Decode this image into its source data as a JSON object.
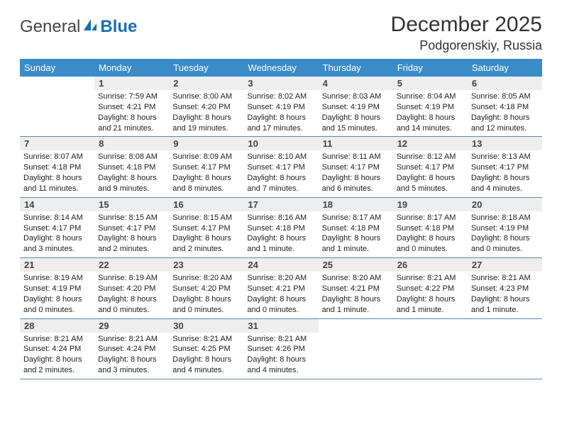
{
  "brand": {
    "part1": "General",
    "part2": "Blue"
  },
  "title": {
    "month_year": "December 2025",
    "location": "Podgorenskiy, Russia"
  },
  "colors": {
    "header_bg": "#3b8bc9",
    "header_text": "#ffffff",
    "daynum_bg": "#eeeeee",
    "week_border": "#5b89b0",
    "logo_accent": "#1b6fb3"
  },
  "weekdays": [
    "Sunday",
    "Monday",
    "Tuesday",
    "Wednesday",
    "Thursday",
    "Friday",
    "Saturday"
  ],
  "weeks": [
    [
      {
        "num": "",
        "lines": []
      },
      {
        "num": "1",
        "lines": [
          "Sunrise: 7:59 AM",
          "Sunset: 4:21 PM",
          "Daylight: 8 hours",
          "and 21 minutes."
        ]
      },
      {
        "num": "2",
        "lines": [
          "Sunrise: 8:00 AM",
          "Sunset: 4:20 PM",
          "Daylight: 8 hours",
          "and 19 minutes."
        ]
      },
      {
        "num": "3",
        "lines": [
          "Sunrise: 8:02 AM",
          "Sunset: 4:19 PM",
          "Daylight: 8 hours",
          "and 17 minutes."
        ]
      },
      {
        "num": "4",
        "lines": [
          "Sunrise: 8:03 AM",
          "Sunset: 4:19 PM",
          "Daylight: 8 hours",
          "and 15 minutes."
        ]
      },
      {
        "num": "5",
        "lines": [
          "Sunrise: 8:04 AM",
          "Sunset: 4:19 PM",
          "Daylight: 8 hours",
          "and 14 minutes."
        ]
      },
      {
        "num": "6",
        "lines": [
          "Sunrise: 8:05 AM",
          "Sunset: 4:18 PM",
          "Daylight: 8 hours",
          "and 12 minutes."
        ]
      }
    ],
    [
      {
        "num": "7",
        "lines": [
          "Sunrise: 8:07 AM",
          "Sunset: 4:18 PM",
          "Daylight: 8 hours",
          "and 11 minutes."
        ]
      },
      {
        "num": "8",
        "lines": [
          "Sunrise: 8:08 AM",
          "Sunset: 4:18 PM",
          "Daylight: 8 hours",
          "and 9 minutes."
        ]
      },
      {
        "num": "9",
        "lines": [
          "Sunrise: 8:09 AM",
          "Sunset: 4:17 PM",
          "Daylight: 8 hours",
          "and 8 minutes."
        ]
      },
      {
        "num": "10",
        "lines": [
          "Sunrise: 8:10 AM",
          "Sunset: 4:17 PM",
          "Daylight: 8 hours",
          "and 7 minutes."
        ]
      },
      {
        "num": "11",
        "lines": [
          "Sunrise: 8:11 AM",
          "Sunset: 4:17 PM",
          "Daylight: 8 hours",
          "and 6 minutes."
        ]
      },
      {
        "num": "12",
        "lines": [
          "Sunrise: 8:12 AM",
          "Sunset: 4:17 PM",
          "Daylight: 8 hours",
          "and 5 minutes."
        ]
      },
      {
        "num": "13",
        "lines": [
          "Sunrise: 8:13 AM",
          "Sunset: 4:17 PM",
          "Daylight: 8 hours",
          "and 4 minutes."
        ]
      }
    ],
    [
      {
        "num": "14",
        "lines": [
          "Sunrise: 8:14 AM",
          "Sunset: 4:17 PM",
          "Daylight: 8 hours",
          "and 3 minutes."
        ]
      },
      {
        "num": "15",
        "lines": [
          "Sunrise: 8:15 AM",
          "Sunset: 4:17 PM",
          "Daylight: 8 hours",
          "and 2 minutes."
        ]
      },
      {
        "num": "16",
        "lines": [
          "Sunrise: 8:15 AM",
          "Sunset: 4:17 PM",
          "Daylight: 8 hours",
          "and 2 minutes."
        ]
      },
      {
        "num": "17",
        "lines": [
          "Sunrise: 8:16 AM",
          "Sunset: 4:18 PM",
          "Daylight: 8 hours",
          "and 1 minute."
        ]
      },
      {
        "num": "18",
        "lines": [
          "Sunrise: 8:17 AM",
          "Sunset: 4:18 PM",
          "Daylight: 8 hours",
          "and 1 minute."
        ]
      },
      {
        "num": "19",
        "lines": [
          "Sunrise: 8:17 AM",
          "Sunset: 4:18 PM",
          "Daylight: 8 hours",
          "and 0 minutes."
        ]
      },
      {
        "num": "20",
        "lines": [
          "Sunrise: 8:18 AM",
          "Sunset: 4:19 PM",
          "Daylight: 8 hours",
          "and 0 minutes."
        ]
      }
    ],
    [
      {
        "num": "21",
        "lines": [
          "Sunrise: 8:19 AM",
          "Sunset: 4:19 PM",
          "Daylight: 8 hours",
          "and 0 minutes."
        ]
      },
      {
        "num": "22",
        "lines": [
          "Sunrise: 8:19 AM",
          "Sunset: 4:20 PM",
          "Daylight: 8 hours",
          "and 0 minutes."
        ]
      },
      {
        "num": "23",
        "lines": [
          "Sunrise: 8:20 AM",
          "Sunset: 4:20 PM",
          "Daylight: 8 hours",
          "and 0 minutes."
        ]
      },
      {
        "num": "24",
        "lines": [
          "Sunrise: 8:20 AM",
          "Sunset: 4:21 PM",
          "Daylight: 8 hours",
          "and 0 minutes."
        ]
      },
      {
        "num": "25",
        "lines": [
          "Sunrise: 8:20 AM",
          "Sunset: 4:21 PM",
          "Daylight: 8 hours",
          "and 1 minute."
        ]
      },
      {
        "num": "26",
        "lines": [
          "Sunrise: 8:21 AM",
          "Sunset: 4:22 PM",
          "Daylight: 8 hours",
          "and 1 minute."
        ]
      },
      {
        "num": "27",
        "lines": [
          "Sunrise: 8:21 AM",
          "Sunset: 4:23 PM",
          "Daylight: 8 hours",
          "and 1 minute."
        ]
      }
    ],
    [
      {
        "num": "28",
        "lines": [
          "Sunrise: 8:21 AM",
          "Sunset: 4:24 PM",
          "Daylight: 8 hours",
          "and 2 minutes."
        ]
      },
      {
        "num": "29",
        "lines": [
          "Sunrise: 8:21 AM",
          "Sunset: 4:24 PM",
          "Daylight: 8 hours",
          "and 3 minutes."
        ]
      },
      {
        "num": "30",
        "lines": [
          "Sunrise: 8:21 AM",
          "Sunset: 4:25 PM",
          "Daylight: 8 hours",
          "and 4 minutes."
        ]
      },
      {
        "num": "31",
        "lines": [
          "Sunrise: 8:21 AM",
          "Sunset: 4:26 PM",
          "Daylight: 8 hours",
          "and 4 minutes."
        ]
      },
      {
        "num": "",
        "lines": []
      },
      {
        "num": "",
        "lines": []
      },
      {
        "num": "",
        "lines": []
      }
    ]
  ]
}
